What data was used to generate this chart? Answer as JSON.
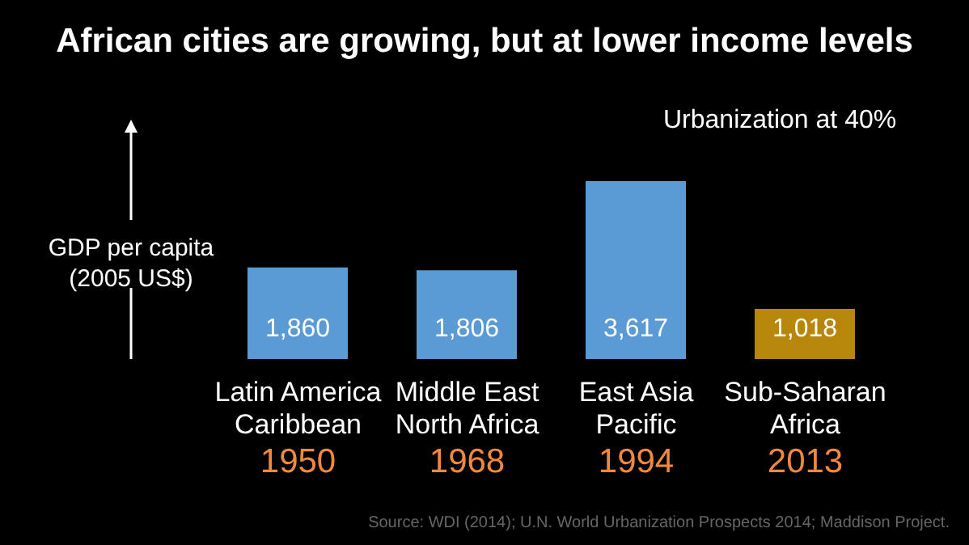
{
  "chart_data": {
    "type": "bar",
    "title": "African cities are growing, but at lower income levels",
    "subtitle": "Urbanization at 40%",
    "ylabel": "GDP per capita\n(2005 US$)",
    "categories": [
      "Latin America\nCaribbean\n1950",
      "Middle East\nNorth Africa\n1968",
      "East Asia\nPacific\n1994",
      "Sub-Saharan\nAfrica\n2013"
    ],
    "values": [
      1860,
      1806,
      3617,
      1018
    ],
    "value_labels": [
      "1,860",
      "1,806",
      "3,617",
      "1,018"
    ],
    "colors": [
      "#5b9bd5",
      "#5b9bd5",
      "#5b9bd5",
      "#b8860b"
    ],
    "annotations": [
      "Source: WDI (2014); U.N. World Urbanization Prospects 2014; Maddison Project."
    ]
  }
}
